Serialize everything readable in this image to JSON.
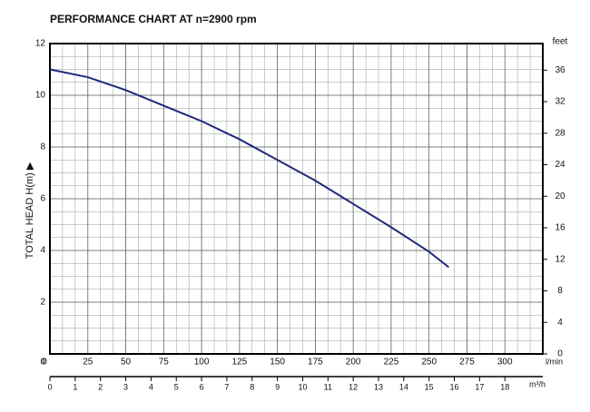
{
  "chart_data": {
    "type": "line",
    "title": "PERFORMANCE CHART AT  n=2900 rpm",
    "y_label": "TOTAL HEAD H(m) ▶",
    "x_label": "l/min",
    "y2_label": "feet",
    "x2_label": "m³/h",
    "x": [
      0,
      25,
      50,
      75,
      100,
      125,
      150,
      175,
      200,
      225,
      250,
      263
    ],
    "series": [
      {
        "name": "H",
        "color": "#1f2a7a",
        "values": [
          11.0,
          10.7,
          10.2,
          9.6,
          9.0,
          8.3,
          7.5,
          6.7,
          5.8,
          4.9,
          3.95,
          3.35
        ]
      }
    ],
    "xlim": [
      0,
      325
    ],
    "xticks": [
      0,
      25,
      50,
      75,
      100,
      125,
      150,
      175,
      200,
      225,
      250,
      275,
      300
    ],
    "ylim": [
      0,
      12
    ],
    "yticks": [
      0,
      2,
      4,
      6,
      8,
      10,
      12
    ],
    "y2lim": [
      0,
      39.37
    ],
    "y2ticks": [
      0,
      4,
      8,
      12,
      16,
      20,
      24,
      28,
      32,
      36
    ],
    "x2lim": [
      0,
      19.5
    ],
    "x2ticks": [
      0,
      1,
      2,
      3,
      4,
      5,
      6,
      7,
      8,
      9,
      10,
      11,
      12,
      13,
      14,
      15,
      16,
      17,
      18
    ],
    "grid": true
  }
}
